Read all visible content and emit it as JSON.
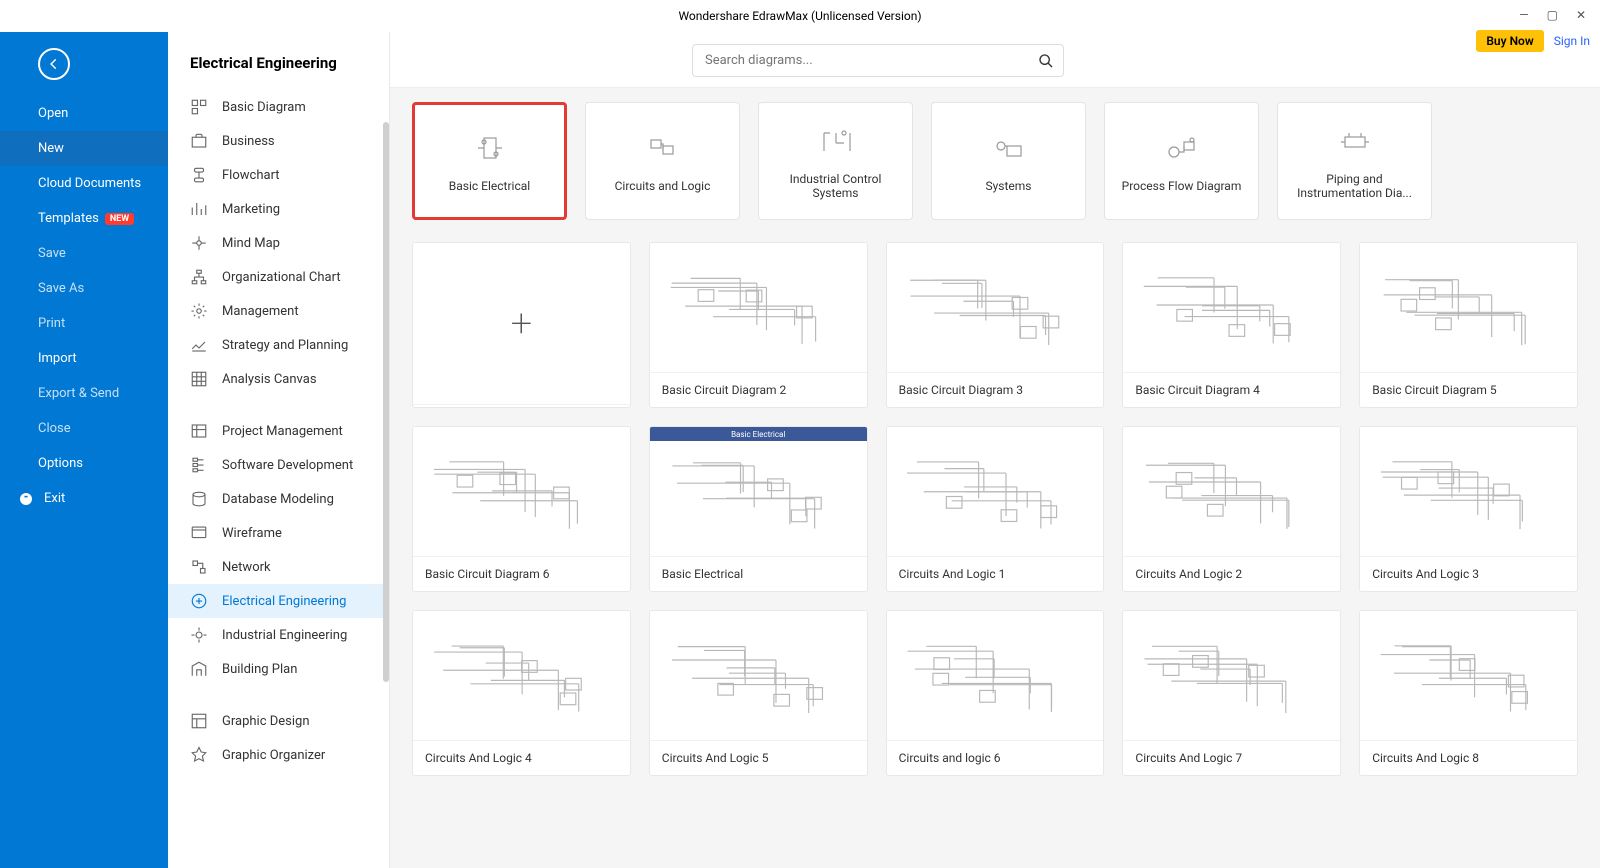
{
  "window": {
    "title": "Wondershare EdrawMax (Unlicensed Version)"
  },
  "top_actions": {
    "buy_now": "Buy Now",
    "sign_in": "Sign In"
  },
  "sidebar_left": {
    "open": "Open",
    "new": "New",
    "cloud": "Cloud Documents",
    "templates": "Templates",
    "templates_badge": "NEW",
    "save": "Save",
    "save_as": "Save As",
    "print": "Print",
    "import": "Import",
    "export": "Export & Send",
    "close": "Close",
    "options": "Options",
    "exit": "Exit"
  },
  "categories": {
    "title": "Electrical Engineering",
    "items": [
      "Basic Diagram",
      "Business",
      "Flowchart",
      "Marketing",
      "Mind Map",
      "Organizational Chart",
      "Management",
      "Strategy and Planning",
      "Analysis Canvas",
      "Project Management",
      "Software Development",
      "Database Modeling",
      "Wireframe",
      "Network",
      "Electrical Engineering",
      "Industrial Engineering",
      "Building Plan",
      "Graphic Design",
      "Graphic Organizer"
    ],
    "selected_index": 14
  },
  "search": {
    "placeholder": "Search diagrams..."
  },
  "tabs": [
    {
      "label": "Basic Electrical",
      "selected": true
    },
    {
      "label": "Circuits and Logic",
      "selected": false
    },
    {
      "label": "Industrial Control Systems",
      "selected": false
    },
    {
      "label": "Systems",
      "selected": false
    },
    {
      "label": "Process Flow Diagram",
      "selected": false
    },
    {
      "label": "Piping and Instrumentation Dia...",
      "selected": false
    }
  ],
  "templates": [
    {
      "label": "",
      "blank": true
    },
    {
      "label": "Basic Circuit Diagram 2"
    },
    {
      "label": "Basic Circuit Diagram 3"
    },
    {
      "label": "Basic Circuit Diagram 4"
    },
    {
      "label": "Basic Circuit Diagram 5"
    },
    {
      "label": "Basic Circuit Diagram 6"
    },
    {
      "label": "Basic Electrical",
      "blue_header": "Basic Electrical"
    },
    {
      "label": "Circuits And Logic 1"
    },
    {
      "label": "Circuits And Logic 2"
    },
    {
      "label": "Circuits And Logic 3"
    },
    {
      "label": "Circuits And Logic 4"
    },
    {
      "label": "Circuits And Logic 5"
    },
    {
      "label": "Circuits and logic 6"
    },
    {
      "label": "Circuits And Logic 7"
    },
    {
      "label": "Circuits And Logic 8"
    }
  ]
}
